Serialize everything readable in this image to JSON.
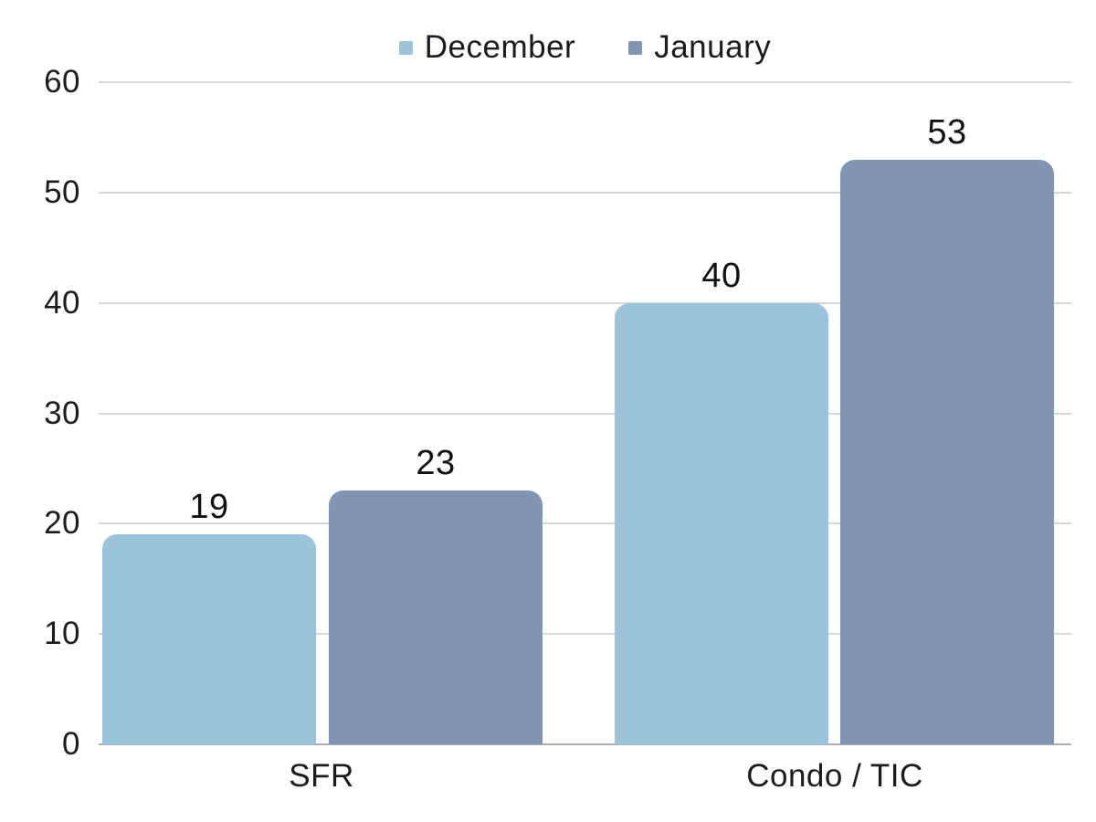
{
  "chart_data": {
    "type": "bar",
    "title": "",
    "xlabel": "",
    "ylabel": "",
    "categories": [
      "SFR",
      "Condo / TIC"
    ],
    "series": [
      {
        "name": "December",
        "color": "#9CC3DC",
        "values": [
          19,
          40
        ]
      },
      {
        "name": "January",
        "color": "#7E96B4",
        "values": [
          23,
          53
        ]
      }
    ],
    "data_labels": [
      {
        "series": "December",
        "category": "SFR",
        "text": "19"
      },
      {
        "series": "January",
        "category": "SFR",
        "text": "23"
      },
      {
        "series": "December",
        "category": "Condo / TIC",
        "text": "40"
      },
      {
        "series": "January",
        "category": "Condo / TIC",
        "text": "53"
      }
    ],
    "ylim": [
      0,
      60
    ],
    "yticks": [
      "0",
      "10",
      "20",
      "30",
      "40",
      "50",
      "60"
    ],
    "grid": true,
    "legend_position": "top-center"
  },
  "colors": {
    "background": "#ffffff",
    "text": "#1c1c1c",
    "gridline": "#d8d8d8",
    "baseline": "#aeaeae",
    "series_december": "#9CC3DC",
    "series_january": "#7E96B4"
  }
}
